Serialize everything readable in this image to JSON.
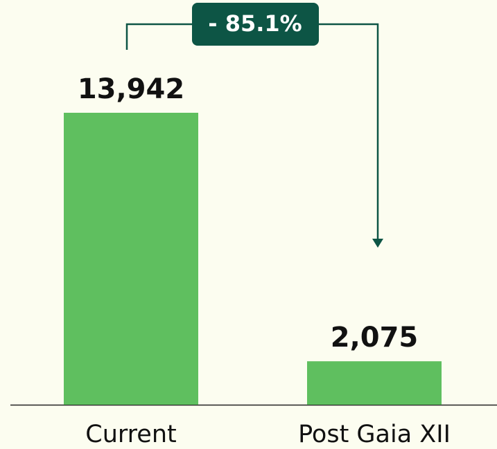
{
  "chart_data": {
    "type": "bar",
    "categories": [
      "Current",
      "Post Gaia XII"
    ],
    "values": [
      13942,
      2075
    ],
    "value_labels": [
      "13,942",
      "2,075"
    ],
    "color": "#5fbf5f",
    "annotation": "- 85.1%"
  }
}
